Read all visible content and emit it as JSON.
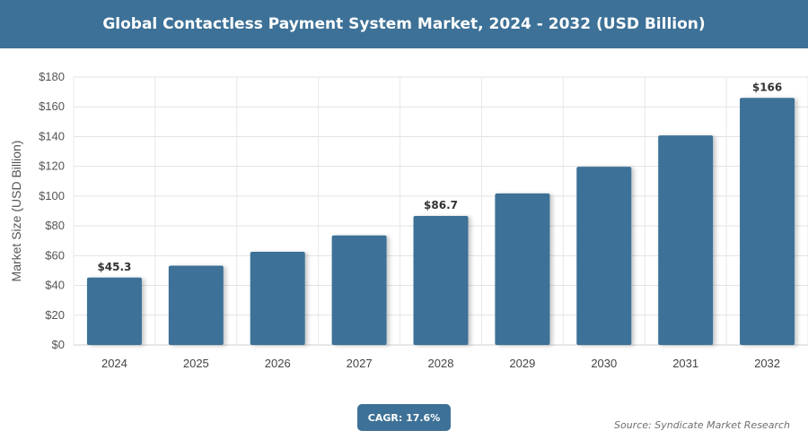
{
  "chart_data": {
    "type": "bar",
    "title": "Global Contactless Payment System Market, 2024 - 2032 (USD Billion)",
    "ylabel": "Market Size (USD Billion)",
    "xlabel": "",
    "ylim": [
      0,
      180
    ],
    "yticks": [
      0,
      20,
      40,
      60,
      80,
      100,
      120,
      140,
      160,
      180
    ],
    "ytick_prefix": "$",
    "categories": [
      "2024",
      "2025",
      "2026",
      "2027",
      "2028",
      "2029",
      "2030",
      "2031",
      "2032"
    ],
    "values": [
      45.3,
      53.3,
      62.6,
      73.6,
      86.7,
      101.8,
      119.7,
      140.8,
      166
    ],
    "data_labels": [
      "$45.3",
      "",
      "",
      "",
      "$86.7",
      "",
      "",
      "",
      "$166"
    ],
    "grid": true,
    "bar_color": "#3d7197"
  },
  "footer": {
    "cagr": "CAGR: 17.6%",
    "source": "Source: Syndicate Market Research"
  }
}
